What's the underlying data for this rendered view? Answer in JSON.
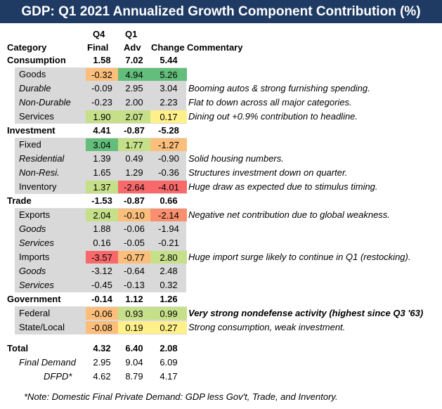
{
  "title": "GDP: Q1 2021 Annualized Growth Component Contribution (%)",
  "headers": {
    "category": "Category",
    "q4_top": "Q4",
    "q4_bottom": "Final",
    "q1_top": "Q1",
    "q1_bottom": "Adv",
    "change": "Change",
    "commentary": "Commentary"
  },
  "colors": {
    "title_bg": "#1f3b63",
    "shade": "#d9d9d9",
    "dark_green": "#63be7b",
    "light_green": "#c6e08a",
    "yellow": "#fff08a",
    "orange": "#fcbf7b",
    "red": "#f8696b",
    "salmon": "#f98f6e"
  },
  "rows": [
    {
      "category": "Consumption",
      "q4": "1.58",
      "q1": "7.02",
      "change": "5.44",
      "commentary": ""
    },
    {
      "category": "Goods",
      "q4": "-0.32",
      "q1": "4.94",
      "change": "5.26",
      "commentary": ""
    },
    {
      "category": "Durable",
      "q4": "-0.09",
      "q1": "2.95",
      "change": "3.04",
      "commentary": "Booming autos & strong furnishing spending."
    },
    {
      "category": "Non-Durable",
      "q4": "-0.23",
      "q1": "2.00",
      "change": "2.23",
      "commentary": "Flat to down across all major categories."
    },
    {
      "category": "Services",
      "q4": "1.90",
      "q1": "2.07",
      "change": "0.17",
      "commentary": "Dining out +0.9% contribution to headline."
    },
    {
      "category": "Investment",
      "q4": "4.41",
      "q1": "-0.87",
      "change": "-5.28",
      "commentary": ""
    },
    {
      "category": "Fixed",
      "q4": "3.04",
      "q1": "1.77",
      "change": "-1.27",
      "commentary": ""
    },
    {
      "category": "Residential",
      "q4": "1.39",
      "q1": "0.49",
      "change": "-0.90",
      "commentary": "Solid housing numbers."
    },
    {
      "category": "Non-Resi.",
      "q4": "1.65",
      "q1": "1.29",
      "change": "-0.36",
      "commentary": "Structures investment down on quarter."
    },
    {
      "category": "Inventory",
      "q4": "1.37",
      "q1": "-2.64",
      "change": "-4.01",
      "commentary": "Huge draw as expected due to stimulus timing."
    },
    {
      "category": "Trade",
      "q4": "-1.53",
      "q1": "-0.87",
      "change": "0.66",
      "commentary": ""
    },
    {
      "category": "Exports",
      "q4": "2.04",
      "q1": "-0.10",
      "change": "-2.14",
      "commentary": "Negative net contribution due to global weakness."
    },
    {
      "category": "Goods",
      "q4": "1.88",
      "q1": "-0.06",
      "change": "-1.94",
      "commentary": ""
    },
    {
      "category": "Services",
      "q4": "0.16",
      "q1": "-0.05",
      "change": "-0.21",
      "commentary": ""
    },
    {
      "category": "Imports",
      "q4": "-3.57",
      "q1": "-0.77",
      "change": "2.80",
      "commentary": "Huge import surge likely to continue in Q1 (restocking)."
    },
    {
      "category": "Goods",
      "q4": "-3.12",
      "q1": "-0.64",
      "change": "2.48",
      "commentary": ""
    },
    {
      "category": "Services",
      "q4": "-0.45",
      "q1": "-0.13",
      "change": "0.32",
      "commentary": ""
    },
    {
      "category": "Government",
      "q4": "-0.14",
      "q1": "1.12",
      "change": "1.26",
      "commentary": ""
    },
    {
      "category": "Federal",
      "q4": "-0.06",
      "q1": "0.93",
      "change": "0.99",
      "commentary": "Very strong nondefense activity (highest since Q3 '63)"
    },
    {
      "category": "State/Local",
      "q4": "-0.08",
      "q1": "0.19",
      "change": "0.27",
      "commentary": "Strong consumption, weak investment."
    },
    {
      "category": "Total",
      "q4": "4.32",
      "q1": "6.40",
      "change": "2.08",
      "commentary": ""
    },
    {
      "category": "Final Demand",
      "q4": "2.95",
      "q1": "9.04",
      "change": "6.09",
      "commentary": ""
    },
    {
      "category": "DFPD*",
      "q4": "4.62",
      "q1": "8.79",
      "change": "4.17",
      "commentary": ""
    }
  ],
  "footnote": "*Note: Domestic Final Private Demand: GDP less Gov't, Trade, and Inventory."
}
